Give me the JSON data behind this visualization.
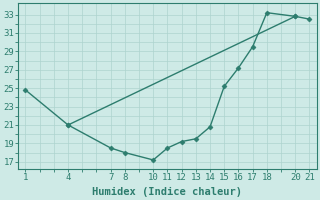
{
  "line1_x": [
    1,
    4,
    7,
    8,
    10,
    11,
    12,
    13,
    14,
    15,
    16,
    17,
    18,
    20,
    21
  ],
  "line1_y": [
    24.8,
    21.0,
    18.5,
    18.0,
    17.2,
    18.5,
    19.2,
    19.5,
    20.8,
    25.2,
    27.2,
    29.5,
    33.2,
    32.8,
    32.5
  ],
  "line2_x": [
    4,
    20
  ],
  "line2_y": [
    21.0,
    32.8
  ],
  "line_color": "#2d7d6e",
  "bg_color": "#ceeae6",
  "grid_color": "#aed4cf",
  "xlabel": "Humidex (Indice chaleur)",
  "ylabel_ticks": [
    17,
    19,
    21,
    23,
    25,
    27,
    29,
    31,
    33
  ],
  "xlabel_ticks": [
    1,
    4,
    7,
    8,
    10,
    11,
    12,
    13,
    14,
    15,
    16,
    17,
    18,
    20,
    21
  ],
  "xlim": [
    0.5,
    21.5
  ],
  "ylim": [
    16.2,
    34.2
  ],
  "xlabel_fontsize": 7.5,
  "tick_fontsize": 6.5,
  "marker": "D",
  "markersize": 2.5,
  "linewidth": 1.0
}
